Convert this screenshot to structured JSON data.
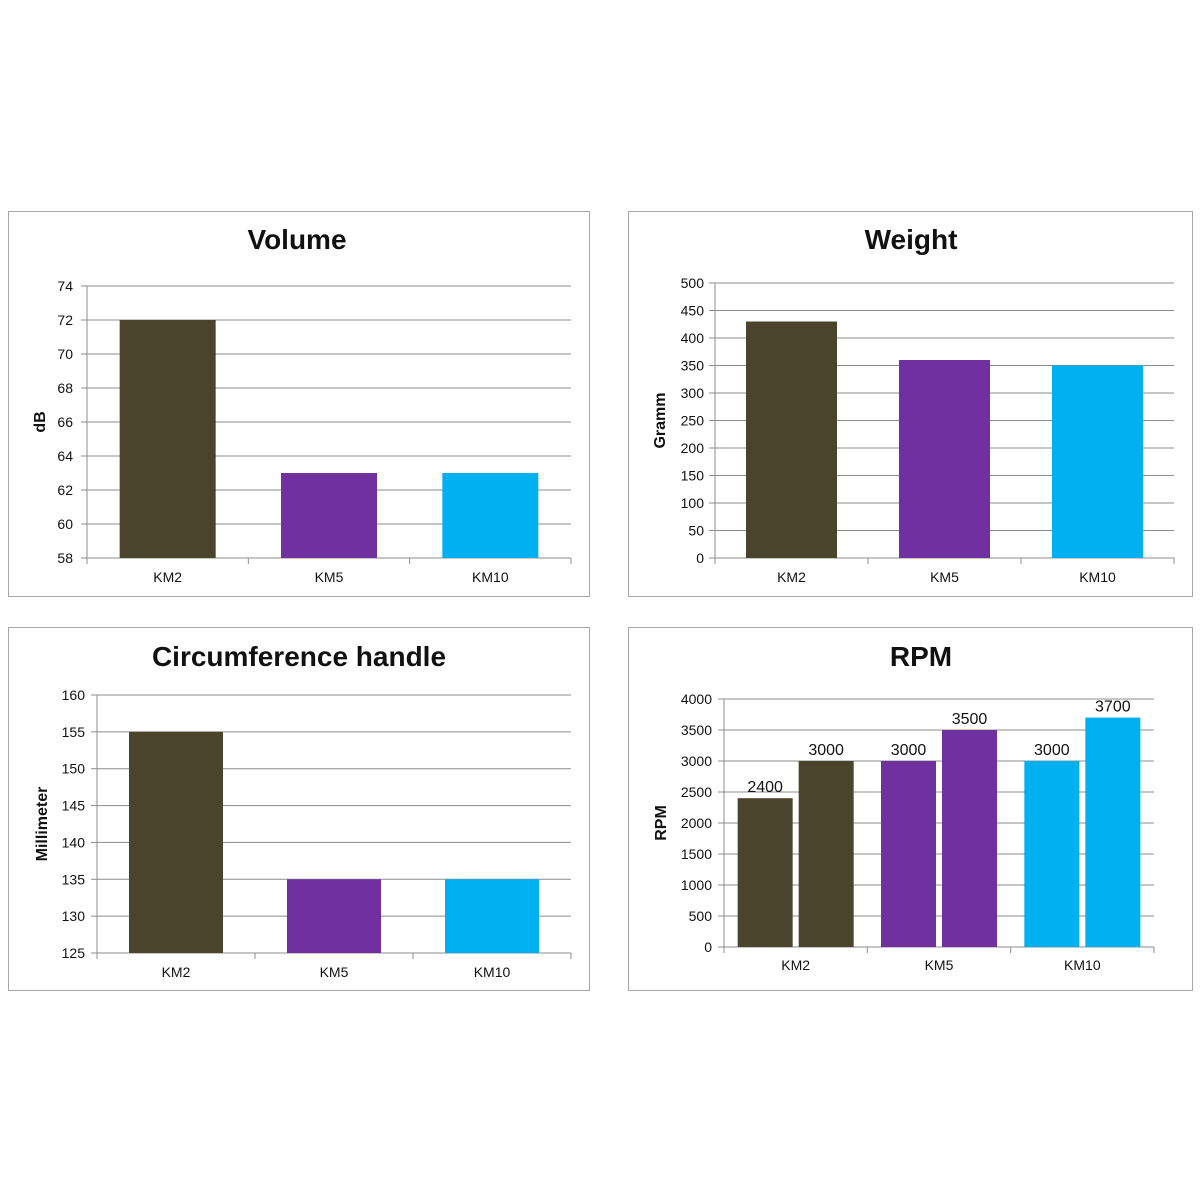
{
  "chart_data": [
    {
      "type": "bar",
      "title": "Volume",
      "ylabel": "dB",
      "xlabel": "",
      "categories": [
        "KM2",
        "KM5",
        "KM10"
      ],
      "values": [
        72,
        63,
        63
      ],
      "colors": [
        "#4a442c",
        "#7030a0",
        "#00b0f0"
      ],
      "ylim": [
        58,
        74
      ],
      "yticks": [
        58,
        60,
        62,
        64,
        66,
        68,
        70,
        72,
        74
      ],
      "grid": true
    },
    {
      "type": "bar",
      "title": "Weight",
      "ylabel": "Gramm",
      "xlabel": "",
      "categories": [
        "KM2",
        "KM5",
        "KM10"
      ],
      "values": [
        430,
        360,
        350
      ],
      "colors": [
        "#4a442c",
        "#7030a0",
        "#00b0f0"
      ],
      "ylim": [
        0,
        500
      ],
      "yticks": [
        0,
        50,
        100,
        150,
        200,
        250,
        300,
        350,
        400,
        450,
        500
      ],
      "grid": true
    },
    {
      "type": "bar",
      "title": "Circumference handle",
      "ylabel": "Millimeter",
      "xlabel": "",
      "categories": [
        "KM2",
        "KM5",
        "KM10"
      ],
      "values": [
        155,
        135,
        135
      ],
      "colors": [
        "#4a442c",
        "#7030a0",
        "#00b0f0"
      ],
      "ylim": [
        125,
        160
      ],
      "yticks": [
        125,
        130,
        135,
        140,
        145,
        150,
        155,
        160
      ],
      "grid": true
    },
    {
      "type": "bar",
      "title": "RPM",
      "ylabel": "RPM",
      "xlabel": "",
      "categories": [
        "KM2",
        "KM5",
        "KM10"
      ],
      "series": [
        {
          "values": [
            2400,
            3000,
            3000
          ]
        },
        {
          "values": [
            3000,
            3500,
            3700
          ]
        }
      ],
      "data_labels": [
        [
          "2400",
          "3000"
        ],
        [
          "3000",
          "3500"
        ],
        [
          "3000",
          "3700"
        ]
      ],
      "colors": [
        "#4a442c",
        "#7030a0",
        "#00b0f0"
      ],
      "ylim": [
        0,
        4000
      ],
      "yticks": [
        0,
        500,
        1000,
        1500,
        2000,
        2500,
        3000,
        3500,
        4000
      ],
      "grid": true
    }
  ]
}
